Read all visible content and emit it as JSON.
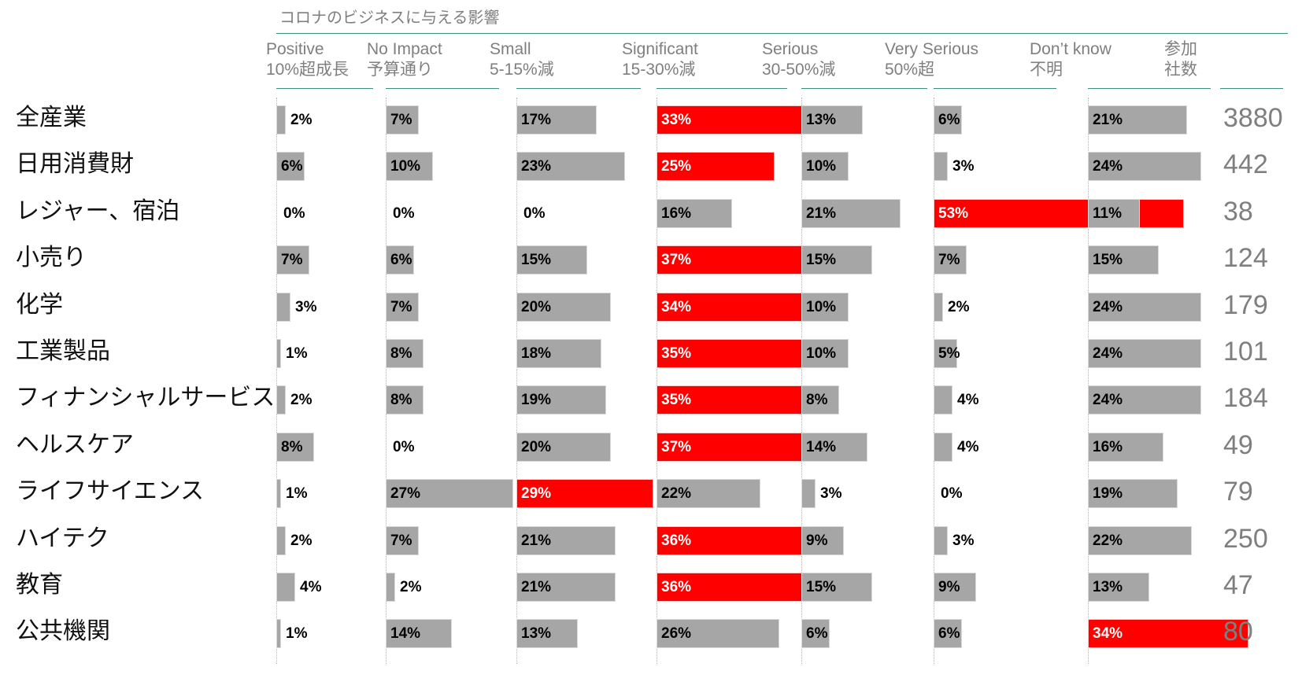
{
  "chart_data": {
    "type": "bar",
    "title": "コロナのビジネスに与える影響",
    "columns": [
      {
        "label1": "Positive",
        "label2": "10%超成長"
      },
      {
        "label1": "No Impact",
        "label2": "予算通り"
      },
      {
        "label1": "Small",
        "label2": "5-15%減"
      },
      {
        "label1": "Significant",
        "label2": "15-30%減"
      },
      {
        "label1": "Serious",
        "label2": "30-50%減"
      },
      {
        "label1": "Very Serious",
        "label2": "50%超"
      },
      {
        "label1": "Don’t know",
        "label2": "不明"
      }
    ],
    "count_header": {
      "label1": "参加",
      "label2": "社数"
    },
    "scale_max_percent": 100,
    "rows": [
      {
        "industry": "全産業",
        "values": [
          2,
          7,
          17,
          33,
          13,
          6,
          21
        ],
        "highlight": 3,
        "count": "3880"
      },
      {
        "industry": "日用消費財",
        "values": [
          6,
          10,
          23,
          25,
          10,
          3,
          24
        ],
        "highlight": 3,
        "count": "442"
      },
      {
        "industry": "レジャー、宿泊",
        "values": [
          0,
          0,
          0,
          16,
          21,
          53,
          11
        ],
        "highlight": 5,
        "count": "38"
      },
      {
        "industry": "小売り",
        "values": [
          7,
          6,
          15,
          37,
          15,
          7,
          15
        ],
        "highlight": 3,
        "count": "124"
      },
      {
        "industry": "化学",
        "values": [
          3,
          7,
          20,
          34,
          10,
          2,
          24
        ],
        "highlight": 3,
        "count": "179"
      },
      {
        "industry": "工業製品",
        "values": [
          1,
          8,
          18,
          35,
          10,
          5,
          24
        ],
        "highlight": 3,
        "count": "101"
      },
      {
        "industry": "フィナンシャルサービス",
        "values": [
          2,
          8,
          19,
          35,
          8,
          4,
          24
        ],
        "highlight": 3,
        "count": "184"
      },
      {
        "industry": "ヘルスケア",
        "values": [
          8,
          0,
          20,
          37,
          14,
          4,
          16
        ],
        "highlight": 3,
        "count": "49"
      },
      {
        "industry": "ライフサイエンス",
        "values": [
          1,
          27,
          29,
          22,
          3,
          0,
          19
        ],
        "highlight": 2,
        "count": "79"
      },
      {
        "industry": "ハイテク",
        "values": [
          2,
          7,
          21,
          36,
          9,
          3,
          22
        ],
        "highlight": 3,
        "count": "250"
      },
      {
        "industry": "教育",
        "values": [
          4,
          2,
          21,
          36,
          15,
          9,
          13
        ],
        "highlight": 3,
        "count": "47"
      },
      {
        "industry": "公共機関",
        "values": [
          1,
          14,
          13,
          26,
          6,
          6,
          34
        ],
        "highlight": 6,
        "count": "80"
      }
    ],
    "colors": {
      "bar": "#a6a6a6",
      "highlight": "#ff0000",
      "header_text": "#7f7f7f",
      "rule": "#3b8f7d"
    }
  }
}
